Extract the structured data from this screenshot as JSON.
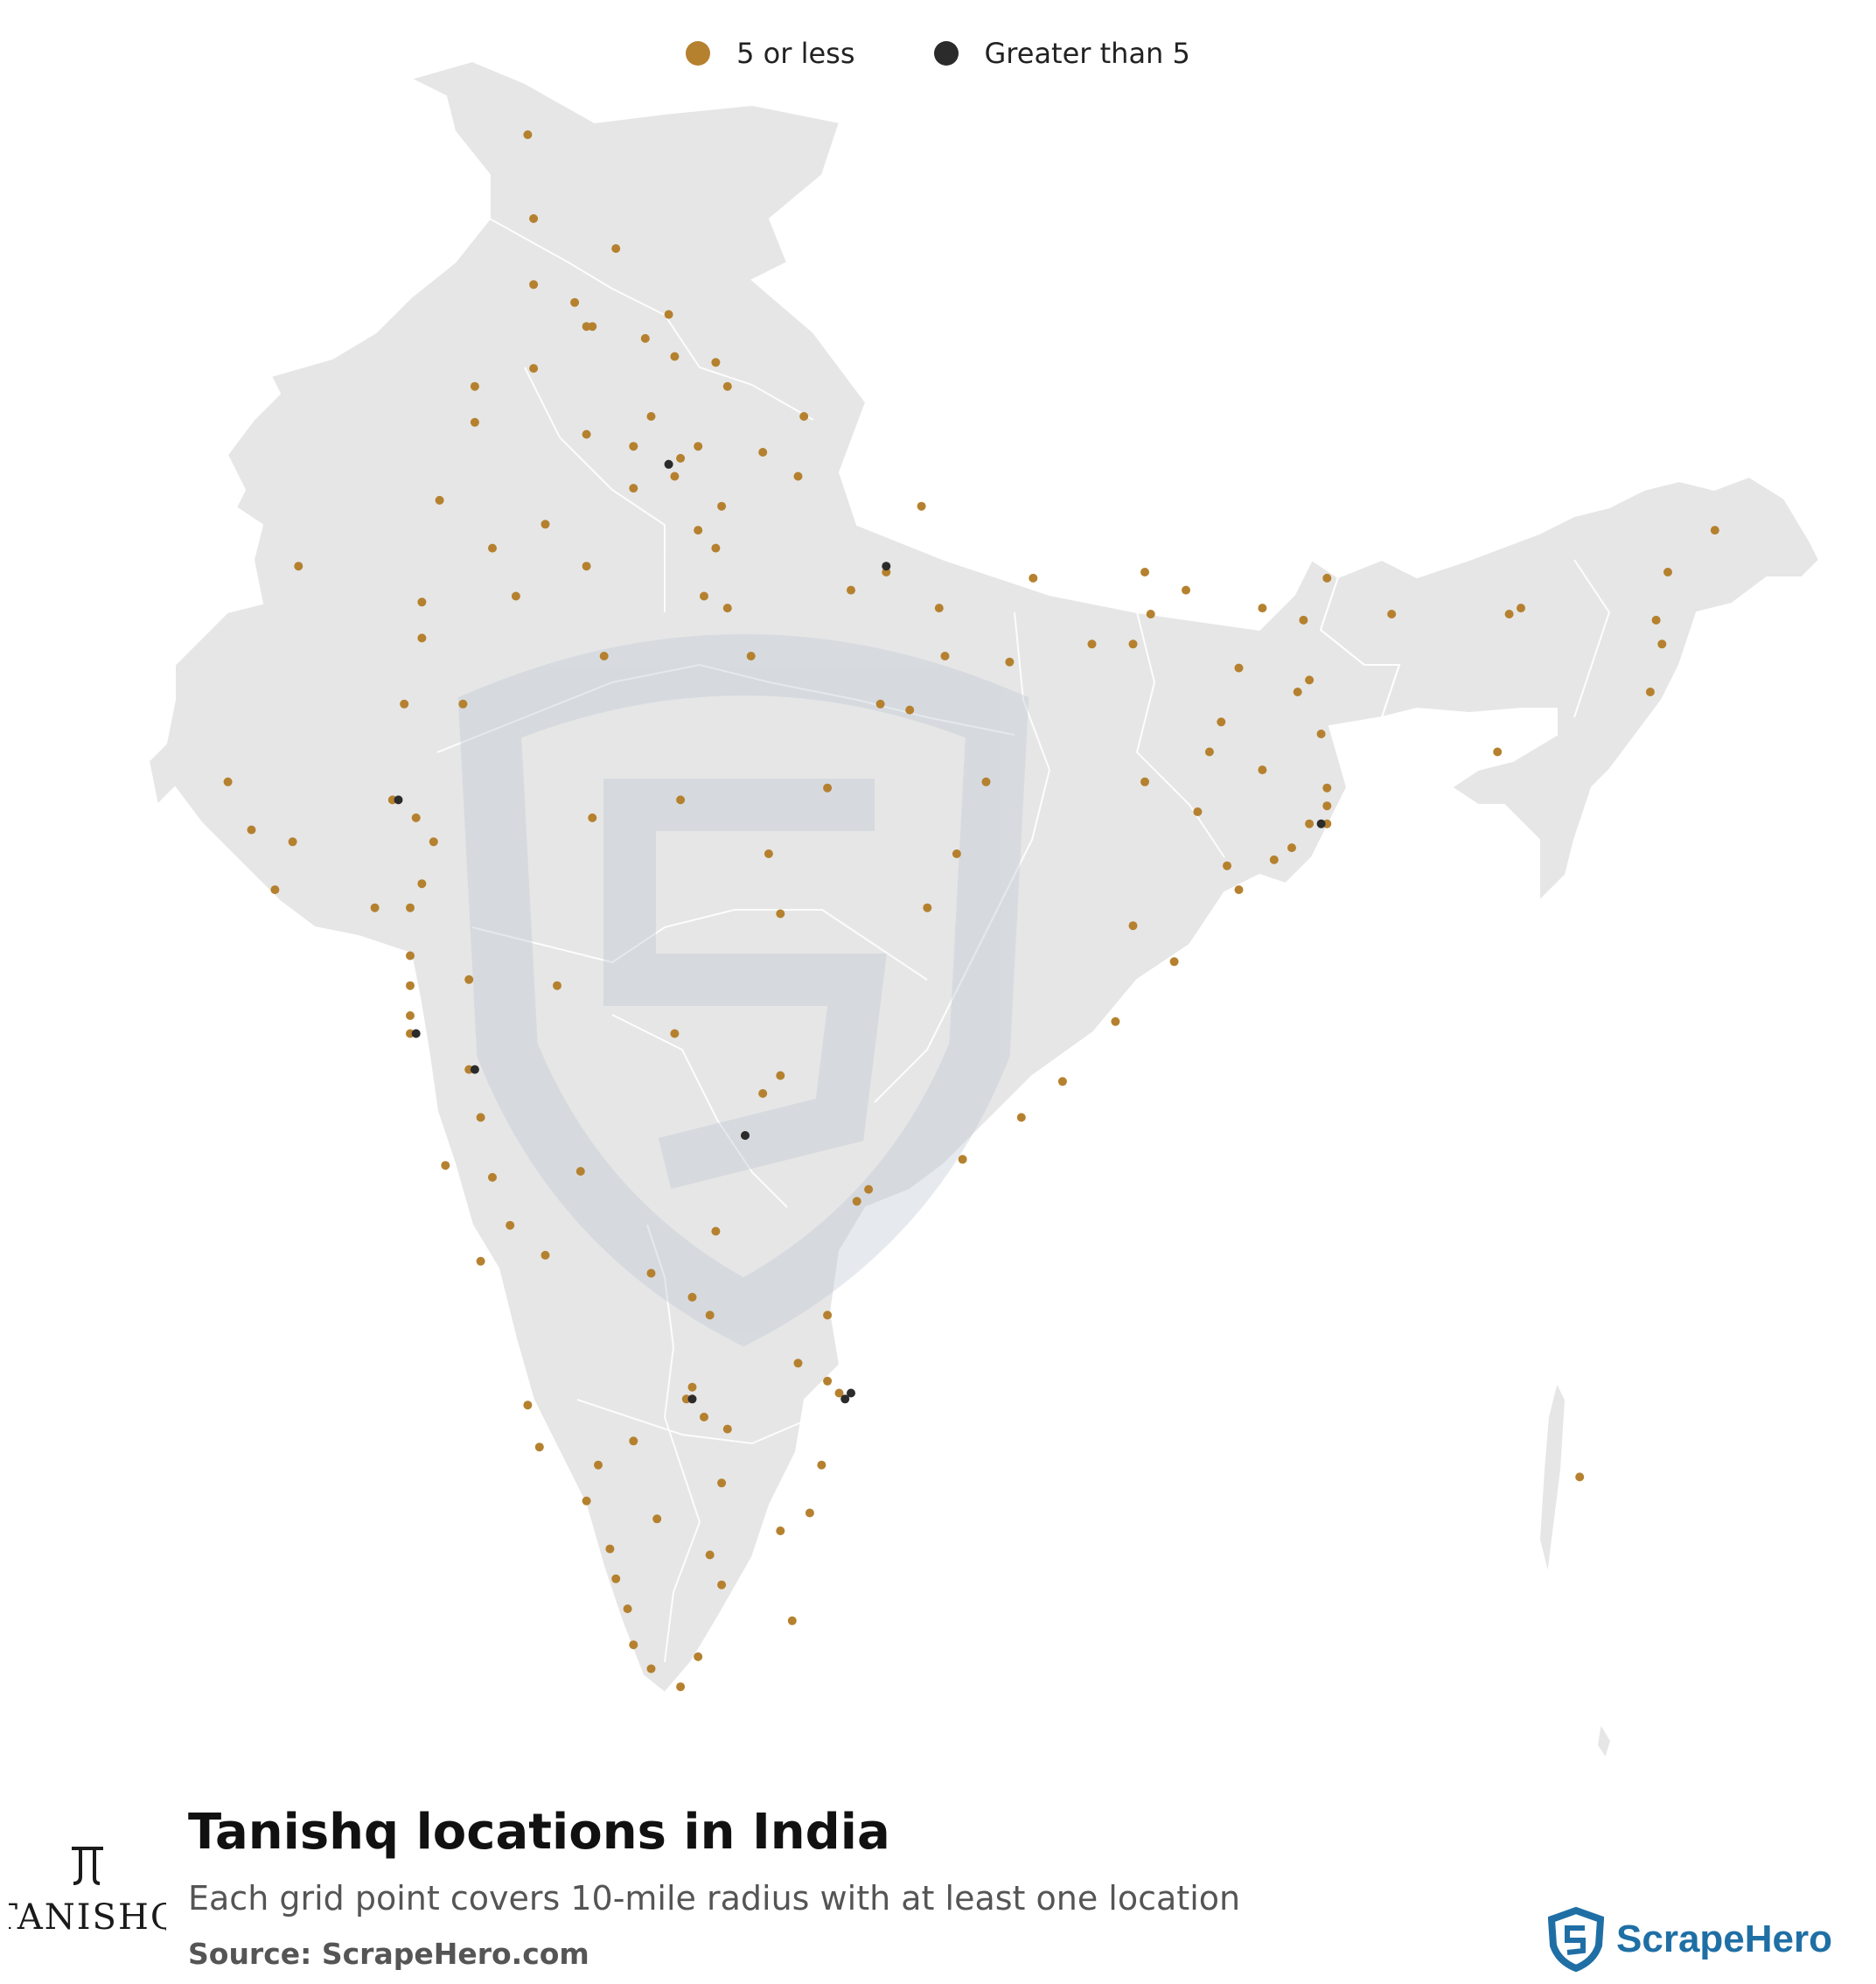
{
  "legend": {
    "small_label": "5 or less",
    "small_color": "#b5812f",
    "large_label": "Greater than 5",
    "large_color": "#2b2b2b"
  },
  "title": "Tanishq locations in India",
  "subtitle": "Each grid point covers 10-mile radius with at least one location",
  "source": "Source: ScrapeHero.com",
  "brand_logo_text": "TANISHQ",
  "watermark_text": "ScrapeHero",
  "map_fill": "#e6e6e6",
  "map_stroke": "#ffffff",
  "points_small": [
    [
      34.1,
      74.8
    ],
    [
      32.7,
      74.9
    ],
    [
      31.6,
      74.9
    ],
    [
      30.9,
      75.9
    ],
    [
      31.1,
      77.2
    ],
    [
      30.3,
      78.0
    ],
    [
      29.9,
      78.2
    ],
    [
      29.4,
      79.5
    ],
    [
      30.7,
      76.8
    ],
    [
      30.2,
      74.9
    ],
    [
      31.3,
      75.6
    ],
    [
      30.9,
      75.8
    ],
    [
      29.1,
      75.8
    ],
    [
      28.9,
      76.6
    ],
    [
      28.6,
      77.2
    ],
    [
      28.4,
      77.3
    ],
    [
      28.7,
      77.4
    ],
    [
      28.9,
      77.7
    ],
    [
      28.0,
      73.3
    ],
    [
      27.6,
      75.1
    ],
    [
      26.9,
      75.8
    ],
    [
      26.4,
      74.6
    ],
    [
      28.2,
      76.6
    ],
    [
      27.5,
      77.7
    ],
    [
      27.2,
      78.0
    ],
    [
      26.4,
      77.8
    ],
    [
      26.2,
      78.2
    ],
    [
      25.4,
      78.6
    ],
    [
      27.9,
      78.1
    ],
    [
      28.4,
      79.4
    ],
    [
      28.8,
      78.8
    ],
    [
      26.8,
      80.9
    ],
    [
      26.5,
      80.3
    ],
    [
      27.9,
      81.5
    ],
    [
      26.2,
      81.8
    ],
    [
      25.3,
      83.0
    ],
    [
      25.4,
      81.9
    ],
    [
      26.7,
      83.4
    ],
    [
      26.8,
      85.3
    ],
    [
      25.6,
      85.1
    ],
    [
      25.6,
      84.4
    ],
    [
      26.1,
      85.4
    ],
    [
      26.5,
      86.0
    ],
    [
      25.2,
      86.9
    ],
    [
      26.2,
      87.3
    ],
    [
      26.0,
      88.0
    ],
    [
      26.7,
      88.4
    ],
    [
      26.1,
      89.5
    ],
    [
      25.0,
      88.1
    ],
    [
      24.8,
      87.9
    ],
    [
      24.1,
      88.3
    ],
    [
      23.5,
      87.3
    ],
    [
      23.2,
      88.4
    ],
    [
      22.9,
      88.4
    ],
    [
      22.6,
      88.4
    ],
    [
      22.6,
      88.1
    ],
    [
      22.2,
      87.8
    ],
    [
      22.8,
      86.2
    ],
    [
      23.3,
      85.3
    ],
    [
      23.8,
      86.4
    ],
    [
      24.3,
      86.6
    ],
    [
      21.5,
      86.9
    ],
    [
      20.9,
      85.1
    ],
    [
      20.3,
      85.8
    ],
    [
      19.3,
      84.8
    ],
    [
      18.3,
      83.9
    ],
    [
      17.7,
      83.2
    ],
    [
      17.0,
      82.2
    ],
    [
      16.5,
      80.6
    ],
    [
      16.3,
      80.4
    ],
    [
      15.8,
      78.0
    ],
    [
      14.7,
      77.6
    ],
    [
      14.4,
      79.9
    ],
    [
      13.6,
      79.4
    ],
    [
      13.2,
      77.6
    ],
    [
      13.0,
      77.5
    ],
    [
      12.9,
      74.8
    ],
    [
      12.3,
      76.6
    ],
    [
      11.9,
      79.8
    ],
    [
      11.6,
      78.1
    ],
    [
      11.0,
      77.0
    ],
    [
      11.3,
      75.8
    ],
    [
      10.8,
      79.1
    ],
    [
      10.5,
      76.2
    ],
    [
      10.0,
      76.3
    ],
    [
      9.9,
      78.1
    ],
    [
      9.5,
      76.5
    ],
    [
      8.9,
      76.6
    ],
    [
      8.5,
      76.9
    ],
    [
      8.2,
      77.4
    ],
    [
      8.7,
      77.7
    ],
    [
      10.4,
      77.9
    ],
    [
      11.1,
      79.6
    ],
    [
      12.5,
      78.2
    ],
    [
      12.7,
      77.8
    ],
    [
      13.1,
      80.1
    ],
    [
      13.3,
      79.9
    ],
    [
      18.1,
      78.8
    ],
    [
      17.4,
      78.5
    ],
    [
      18.4,
      79.1
    ],
    [
      19.1,
      77.3
    ],
    [
      20.0,
      73.8
    ],
    [
      19.9,
      75.3
    ],
    [
      18.5,
      73.8
    ],
    [
      17.7,
      74.0
    ],
    [
      16.7,
      74.2
    ],
    [
      15.4,
      75.1
    ],
    [
      15.9,
      74.5
    ],
    [
      15.3,
      74.0
    ],
    [
      16.9,
      73.4
    ],
    [
      19.1,
      72.8
    ],
    [
      19.4,
      72.8
    ],
    [
      19.9,
      72.8
    ],
    [
      20.4,
      72.8
    ],
    [
      21.2,
      72.8
    ],
    [
      21.6,
      73.0
    ],
    [
      22.3,
      73.2
    ],
    [
      22.7,
      72.9
    ],
    [
      23.0,
      72.5
    ],
    [
      22.3,
      70.8
    ],
    [
      22.5,
      70.1
    ],
    [
      21.5,
      70.5
    ],
    [
      21.2,
      72.2
    ],
    [
      23.3,
      69.7
    ],
    [
      24.6,
      72.7
    ],
    [
      23.0,
      77.4
    ],
    [
      23.2,
      79.9
    ],
    [
      22.7,
      75.9
    ],
    [
      22.1,
      78.9
    ],
    [
      21.1,
      79.1
    ],
    [
      21.2,
      81.6
    ],
    [
      22.1,
      82.1
    ],
    [
      23.3,
      82.6
    ],
    [
      24.5,
      81.3
    ],
    [
      24.6,
      80.8
    ],
    [
      25.4,
      76.1
    ],
    [
      24.6,
      73.7
    ],
    [
      25.7,
      73.0
    ],
    [
      26.3,
      73.0
    ],
    [
      26.9,
      70.9
    ],
    [
      27.2,
      74.2
    ],
    [
      29.4,
      76.9
    ],
    [
      30.4,
      77.3
    ],
    [
      29.3,
      73.9
    ],
    [
      29.9,
      73.9
    ],
    [
      32.2,
      76.3
    ],
    [
      26.0,
      94.0
    ],
    [
      26.8,
      94.2
    ],
    [
      27.5,
      95.0
    ],
    [
      26.2,
      91.7
    ],
    [
      26.1,
      91.5
    ],
    [
      24.8,
      93.9
    ],
    [
      25.6,
      94.1
    ],
    [
      23.8,
      91.3
    ],
    [
      11.7,
      92.7
    ],
    [
      14.4,
      77.9
    ],
    [
      15.1,
      76.9
    ],
    [
      16.8,
      75.7
    ],
    [
      12.2,
      75.0
    ],
    [
      9.3,
      79.3
    ],
    [
      11.9,
      76.0
    ],
    [
      22.0,
      87.5
    ],
    [
      21.9,
      86.7
    ]
  ],
  "points_large": [
    [
      28.6,
      77.2
    ],
    [
      26.9,
      80.9
    ],
    [
      22.6,
      88.3
    ],
    [
      23.0,
      72.6
    ],
    [
      19.1,
      72.9
    ],
    [
      18.5,
      73.9
    ],
    [
      17.4,
      78.5
    ],
    [
      13.0,
      77.6
    ],
    [
      13.1,
      80.3
    ],
    [
      13.0,
      80.2
    ]
  ]
}
